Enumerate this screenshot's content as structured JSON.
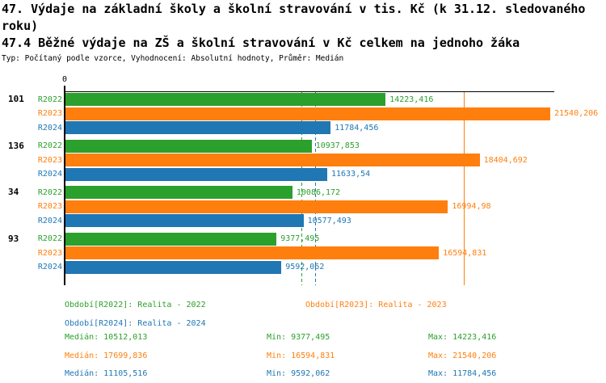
{
  "header": {
    "title_line1": "47. Výdaje na základní školy a školní stravování v tis. Kč (k 31.12. sledovaného roku)",
    "title_line2": "47.4 Běžné výdaje na ZŠ a školní stravování v Kč celkem na jednoho žáka",
    "subtitle": "Typ: Počítaný podle vzorce, Vyhodnocení: Absolutní hodnoty, Průměr: Medián"
  },
  "chart_data": {
    "type": "bar",
    "orientation": "horizontal",
    "title": "47.4 Běžné výdaje na ZŠ a školní stravování v Kč celkem na jednoho žáka",
    "x_axis": {
      "zero_label": "0",
      "min": 0,
      "max": 21685,
      "gridlines": false
    },
    "categories": [
      "101",
      "136",
      "34",
      "93"
    ],
    "series": [
      {
        "name": "R2022",
        "color": "#2ca02c",
        "values": [
          14223.416,
          10937.853,
          10086.172,
          9377.495
        ],
        "value_labels": [
          "14223,416",
          "10937,853",
          "10086,172",
          "9377,495"
        ],
        "median": 10512.013,
        "median_line_style": "dashed"
      },
      {
        "name": "R2023",
        "color": "#ff7f0e",
        "values": [
          21540.206,
          18404.692,
          16994.98,
          16594.831
        ],
        "value_labels": [
          "21540,206",
          "18404,692",
          "16994,98",
          "16594,831"
        ],
        "median": 17699.836,
        "median_line_style": "solid"
      },
      {
        "name": "R2024",
        "color": "#1f77b4",
        "values": [
          11784.456,
          11633.54,
          10577.493,
          9592.062
        ],
        "value_labels": [
          "11784,456",
          "11633,54",
          "10577,493",
          "9592,062"
        ],
        "median": 11105.516,
        "median_line_style": "dashed"
      }
    ],
    "legend": [
      {
        "label": "Období[R2022]: Realita - 2022",
        "color": "#2ca02c"
      },
      {
        "label": "Období[R2023]: Realita - 2023",
        "color": "#ff7f0e"
      },
      {
        "label": "Období[R2024]: Realita - 2024",
        "color": "#1f77b4"
      }
    ],
    "stats": [
      {
        "color": "#2ca02c",
        "median": "Medián: 10512,013",
        "min": "Min: 9377,495",
        "max": "Max: 14223,416"
      },
      {
        "color": "#ff7f0e",
        "median": "Medián: 17699,836",
        "min": "Min: 16594,831",
        "max": "Max: 21540,206"
      },
      {
        "color": "#1f77b4",
        "median": "Medián: 11105,516",
        "min": "Min: 9592,062",
        "max": "Max: 11784,456"
      }
    ]
  }
}
